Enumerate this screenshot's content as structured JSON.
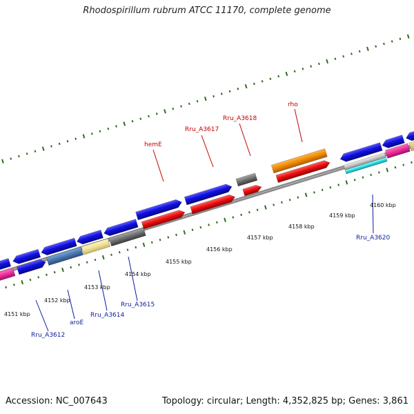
{
  "header": {
    "title": "Rhodospirillum rubrum ATCC 11170, complete genome"
  },
  "footer": {
    "accession": "Accession: NC_007643",
    "summary": "Topology: circular; Length: 4,352,825 bp; Genes: 3,861"
  },
  "colors": {
    "backbone": "#8a8a8a",
    "tick": "#2f6a1e",
    "forward_gene": "#1010e0",
    "reverse_gene": "#ee1111",
    "label_top": "#c00000",
    "label_bottom": "#0a1a9a"
  },
  "scale": {
    "ticks": [
      {
        "label": "4151 kbp"
      },
      {
        "label": "4152 kbp"
      },
      {
        "label": "4153 kbp"
      },
      {
        "label": "4154 kbp"
      },
      {
        "label": "4155 kbp"
      },
      {
        "label": "4156 kbp"
      },
      {
        "label": "4157 kbp"
      },
      {
        "label": "4158 kbp"
      },
      {
        "label": "4159 kbp"
      },
      {
        "label": "4160 kbp"
      }
    ]
  },
  "labels": {
    "top": [
      {
        "text": "hemE"
      },
      {
        "text": "Rru_A3617"
      },
      {
        "text": "Rru_A3618"
      },
      {
        "text": "rho"
      }
    ],
    "bottom": [
      {
        "text": "Rru_A3612"
      },
      {
        "text": "aroE"
      },
      {
        "text": "Rru_A3614"
      },
      {
        "text": "Rru_A3615"
      },
      {
        "text": "Rru_A3620"
      }
    ]
  }
}
